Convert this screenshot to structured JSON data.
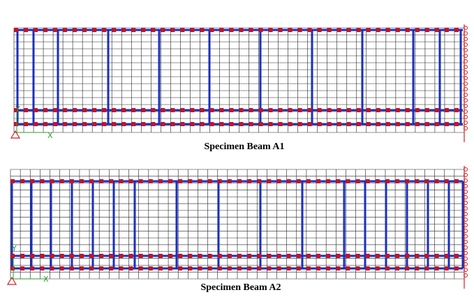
{
  "beams": [
    {
      "caption": "Specimen Beam A1",
      "axis_y": "Y",
      "axis_x": "X"
    },
    {
      "caption": "Specimen Beam A2",
      "axis_y": "Y",
      "axis_x": "X"
    }
  ]
}
